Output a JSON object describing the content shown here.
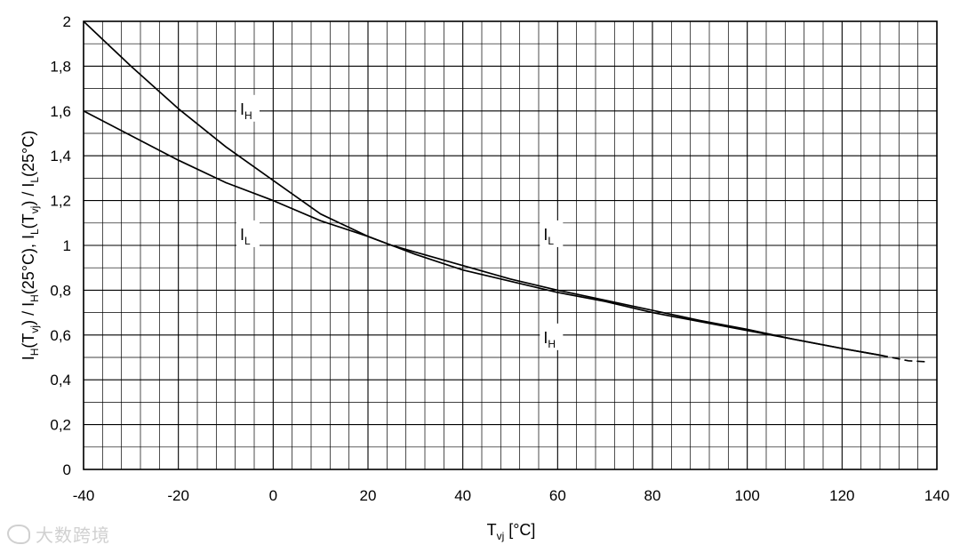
{
  "chart_data": {
    "type": "line",
    "xlabel": "T",
    "xlabel_sub": "vj",
    "xlabel_unit": " [°C]",
    "ylabel_parts": [
      {
        "t": "I",
        "s": "H"
      },
      {
        "t": "(T",
        "s": "vj"
      },
      {
        "t": ") / I",
        "s": "H"
      },
      {
        "t": "(25°C), I",
        "s": "L"
      },
      {
        "t": "(T",
        "s": "vj"
      },
      {
        "t": ") / I",
        "s": "L"
      },
      {
        "t": "(25°C)",
        "s": ""
      }
    ],
    "xlim": [
      -40,
      140
    ],
    "ylim": [
      0,
      2
    ],
    "x_ticks": [
      -40,
      -20,
      0,
      20,
      40,
      60,
      80,
      100,
      120,
      140
    ],
    "x_tick_labels": [
      "-40",
      "-20",
      "0",
      "20",
      "40",
      "60",
      "80",
      "100",
      "120",
      "140"
    ],
    "y_ticks": [
      0,
      0.2,
      0.4,
      0.6,
      0.8,
      1,
      1.2,
      1.4,
      1.6,
      1.8,
      2
    ],
    "y_tick_labels": [
      "0",
      "0,2",
      "0,4",
      "0,6",
      "0,8",
      "1",
      "1,2",
      "1,4",
      "1,6",
      "1,8",
      "2"
    ],
    "grid": true,
    "grid_minor_x_step": 4,
    "grid_minor_y_step": 0.1,
    "series": [
      {
        "name": "I",
        "name_sub": "H",
        "x": [
          -40,
          -30,
          -20,
          -10,
          0,
          10,
          20,
          25,
          30,
          40,
          50,
          60,
          70,
          80,
          90,
          100,
          110,
          120,
          128
        ],
        "y": [
          2.0,
          1.8,
          1.61,
          1.44,
          1.29,
          1.14,
          1.04,
          1.0,
          0.96,
          0.89,
          0.84,
          0.79,
          0.75,
          0.7,
          0.66,
          0.62,
          0.58,
          0.54,
          0.51
        ],
        "dashed_x": [
          128,
          134,
          138
        ],
        "dashed_y": [
          0.51,
          0.485,
          0.48
        ]
      },
      {
        "name": "I",
        "name_sub": "L",
        "x": [
          -40,
          -30,
          -20,
          -10,
          0,
          10,
          20,
          25,
          30,
          40,
          50,
          60,
          70,
          80,
          90,
          100,
          110,
          120,
          128
        ],
        "y": [
          1.6,
          1.49,
          1.38,
          1.28,
          1.2,
          1.11,
          1.04,
          1.0,
          0.97,
          0.91,
          0.85,
          0.8,
          0.755,
          0.71,
          0.665,
          0.625,
          0.58,
          0.54,
          0.51
        ]
      }
    ],
    "annotations": [
      {
        "text": "I",
        "sub": "H",
        "x": -7,
        "y": 1.6
      },
      {
        "text": "I",
        "sub": "L",
        "x": -7,
        "y": 1.04
      },
      {
        "text": "I",
        "sub": "L",
        "x": 57,
        "y": 1.04
      },
      {
        "text": "I",
        "sub": "H",
        "x": 57,
        "y": 0.58
      }
    ]
  },
  "watermark": {
    "text": "大数跨境"
  }
}
